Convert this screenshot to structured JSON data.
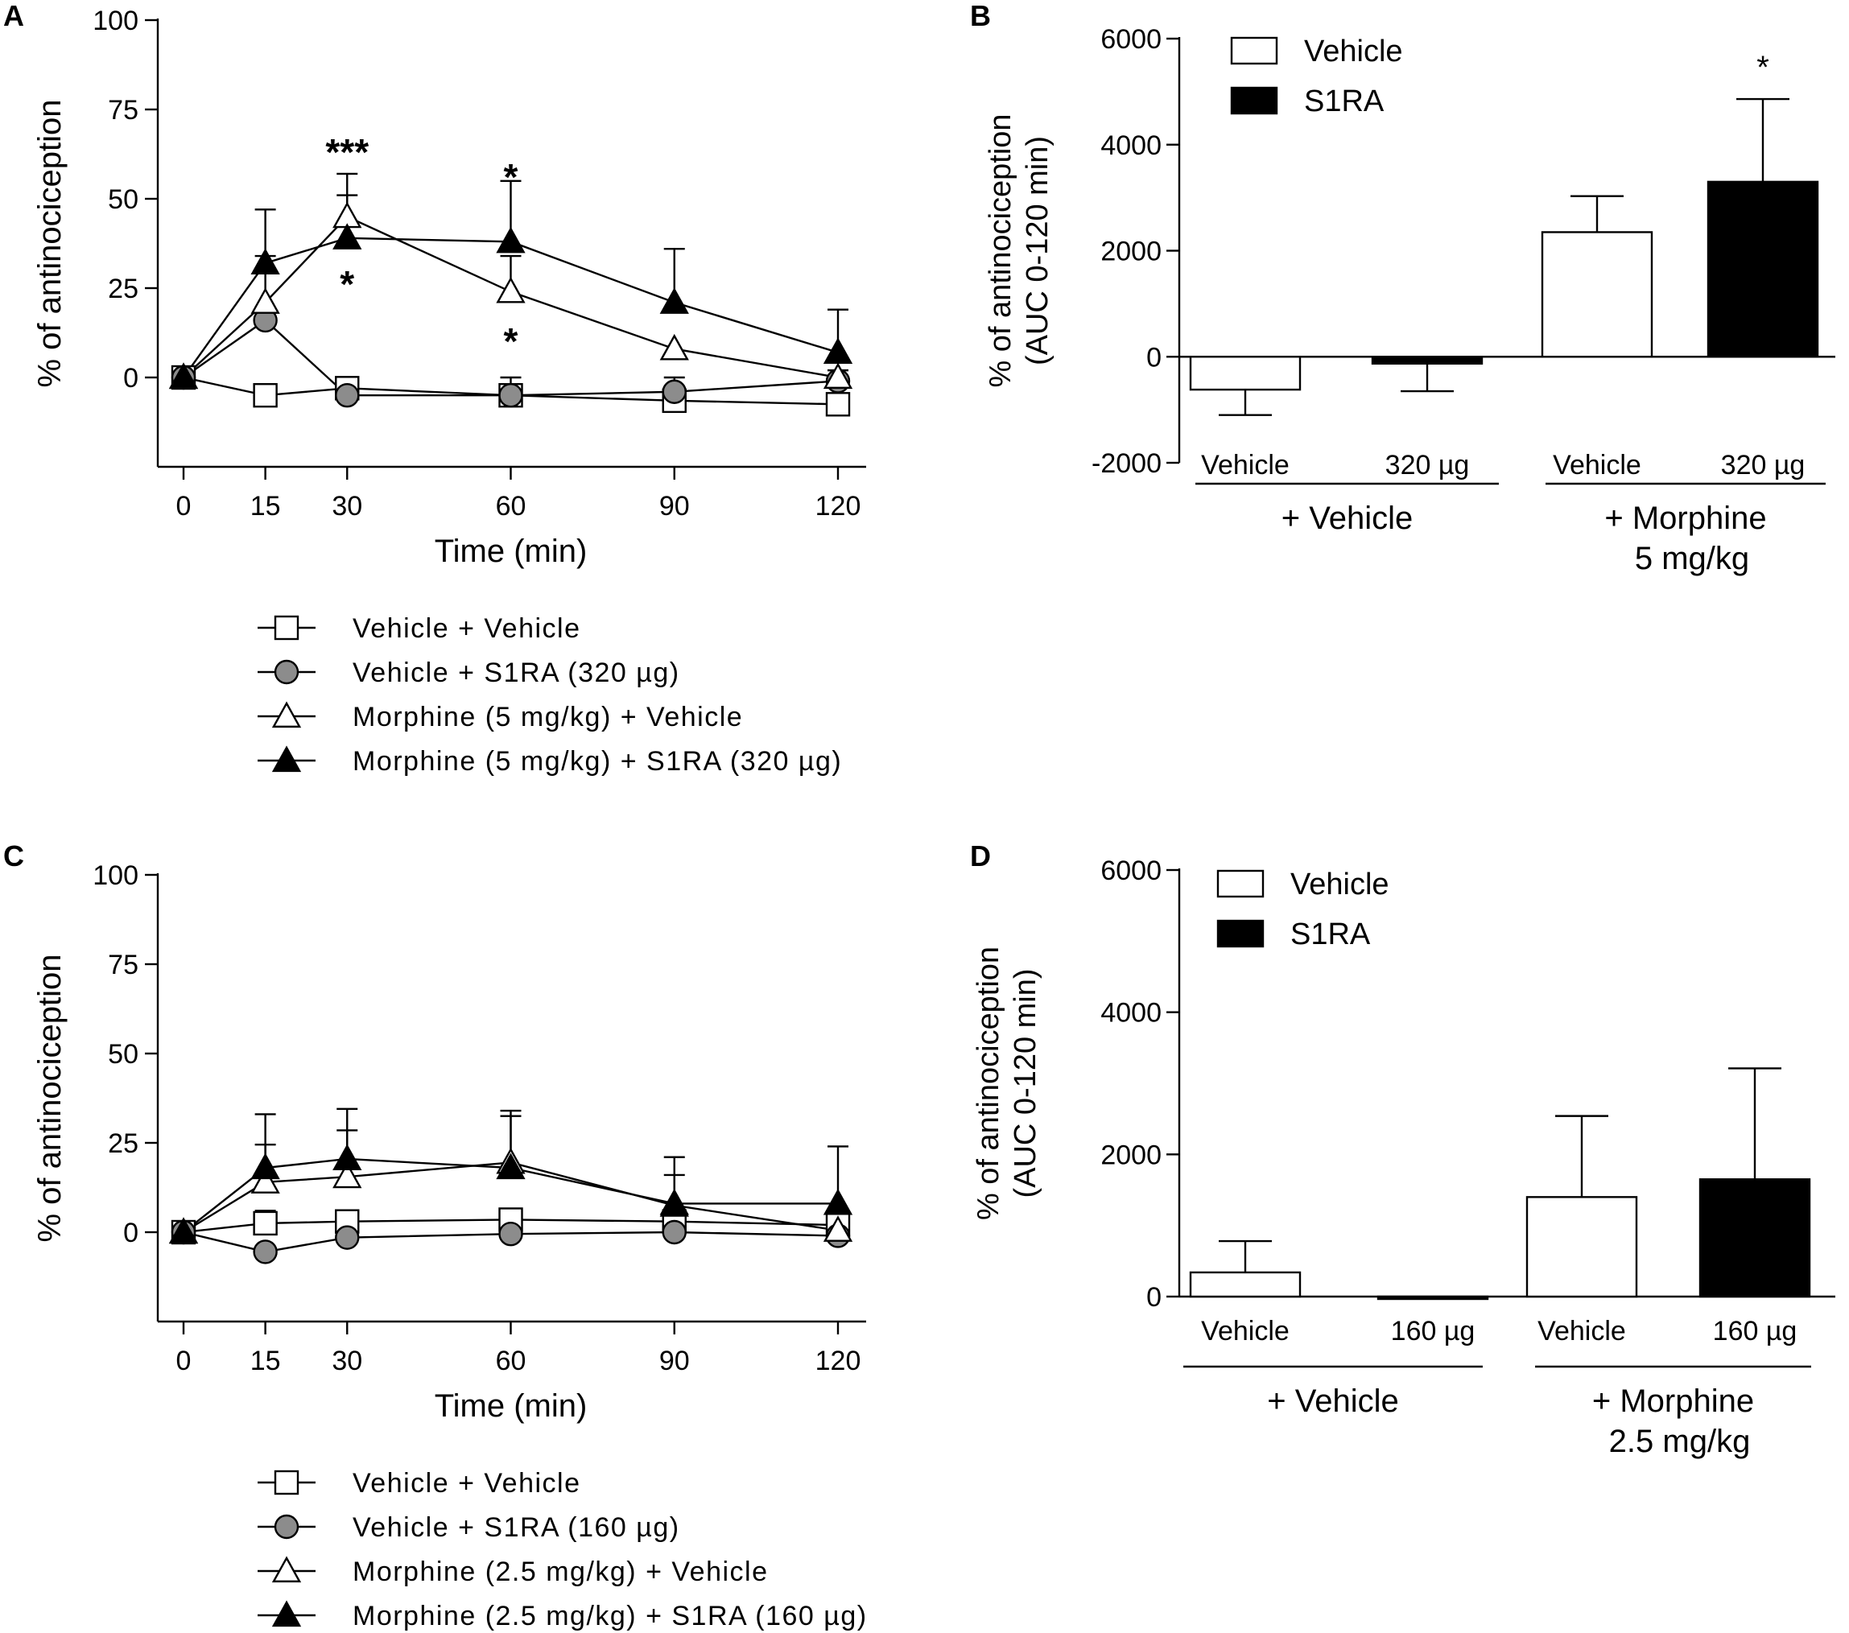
{
  "chart_data": [
    {
      "panel_label": "A",
      "type": "line",
      "xlabel": "Time (min)",
      "ylabel": "% of antinociception",
      "x": [
        0,
        15,
        30,
        60,
        90,
        120
      ],
      "xticks": [
        "0",
        "15",
        "30",
        "60",
        "90",
        "120"
      ],
      "yticks": [
        "0",
        "25",
        "50",
        "75",
        "100"
      ],
      "ylim": [
        -25,
        100
      ],
      "series": [
        {
          "name": "Vehicle + Vehicle",
          "marker": "square-open",
          "values": [
            0,
            -5,
            -3,
            -5,
            -6.5,
            -7.5
          ],
          "errors": [
            3,
            3,
            3,
            3,
            3,
            3
          ]
        },
        {
          "name": "Vehicle + S1RA (320 µg)",
          "marker": "circle-gray",
          "values": [
            0,
            16,
            -5,
            -5,
            -4,
            -1
          ],
          "errors": [
            0,
            0,
            0,
            5,
            4,
            3
          ]
        },
        {
          "name": "Morphine (5 mg/kg) + Vehicle",
          "marker": "triangle-open",
          "values": [
            0,
            21,
            45,
            24,
            8,
            0
          ],
          "errors": [
            0,
            13,
            12,
            10,
            0,
            0
          ]
        },
        {
          "name": "Morphine (5 mg/kg) + S1RA (320 µg)",
          "marker": "triangle-filled",
          "values": [
            0,
            32,
            39,
            38,
            21,
            7
          ],
          "errors": [
            0,
            15,
            12,
            17,
            15,
            12
          ]
        }
      ],
      "annotations": [
        {
          "text": "***",
          "x": 30,
          "y": 64
        },
        {
          "text": "*",
          "x": 30,
          "y": 27
        },
        {
          "text": "*",
          "x": 60,
          "y": 57
        },
        {
          "text": "*",
          "x": 60,
          "y": 11
        }
      ]
    },
    {
      "panel_label": "B",
      "type": "bar",
      "ylabel": [
        "% of antinociception",
        "(AUC 0-120 min)"
      ],
      "yticks": [
        "-2000",
        "0",
        "2000",
        "4000",
        "6000"
      ],
      "ylim": [
        -2000,
        6000
      ],
      "bar_labels": [
        "Vehicle",
        "320 µg",
        "Vehicle",
        "320 µg"
      ],
      "values": [
        -620,
        -130,
        2350,
        3300
      ],
      "errors": [
        480,
        520,
        680,
        1560
      ],
      "fills": [
        "white",
        "black",
        "white",
        "black"
      ],
      "groups": [
        {
          "lines": [
            "+ Vehicle"
          ]
        },
        {
          "lines": [
            "+ Morphine",
            "5 mg/kg"
          ]
        }
      ],
      "legend": [
        "Vehicle",
        "S1RA"
      ],
      "annotations": [
        {
          "text": "*",
          "bar": 3
        }
      ]
    },
    {
      "panel_label": "C",
      "type": "line",
      "xlabel": "Time (min)",
      "ylabel": "% of antinociception",
      "x": [
        0,
        15,
        30,
        60,
        90,
        120
      ],
      "xticks": [
        "0",
        "15",
        "30",
        "60",
        "90",
        "120"
      ],
      "yticks": [
        "0",
        "25",
        "50",
        "75",
        "100"
      ],
      "ylim": [
        -25,
        100
      ],
      "series": [
        {
          "name": "Vehicle + Vehicle",
          "marker": "square-open",
          "values": [
            0,
            2.5,
            3,
            3.5,
            3,
            2
          ],
          "errors": [
            2,
            3.5,
            3,
            2,
            2,
            2
          ]
        },
        {
          "name": "Vehicle + S1RA (160 µg)",
          "marker": "circle-gray",
          "values": [
            0,
            -5.5,
            -1.5,
            -0.5,
            0,
            -1
          ],
          "errors": [
            0,
            0,
            0,
            0,
            0,
            0
          ]
        },
        {
          "name": "Morphine (2.5 mg/kg) + Vehicle",
          "marker": "triangle-open",
          "values": [
            0,
            14,
            15.5,
            19.5,
            7.5,
            0.5
          ],
          "errors": [
            0,
            10.5,
            13,
            13,
            8.5,
            0
          ]
        },
        {
          "name": "Morphine (2.5 mg/kg) + S1RA (160 µg)",
          "marker": "triangle-filled",
          "values": [
            0,
            18,
            20.5,
            18,
            8,
            8
          ],
          "errors": [
            0,
            15,
            14,
            16,
            13,
            16
          ]
        }
      ]
    },
    {
      "panel_label": "D",
      "type": "bar",
      "ylabel": [
        "% of antinociception",
        "(AUC 0-120 min)"
      ],
      "yticks": [
        "0",
        "2000",
        "4000",
        "6000"
      ],
      "ylim": [
        0,
        6000
      ],
      "bar_labels": [
        "Vehicle",
        "160 µg",
        "Vehicle",
        "160 µg"
      ],
      "values": [
        340,
        0,
        1400,
        1650
      ],
      "errors": [
        440,
        0,
        1140,
        1560
      ],
      "fills": [
        "white",
        "black",
        "white",
        "black"
      ],
      "groups": [
        {
          "lines": [
            "+ Vehicle"
          ]
        },
        {
          "lines": [
            "+ Morphine",
            "2.5 mg/kg"
          ]
        }
      ],
      "legend": [
        "Vehicle",
        "S1RA"
      ]
    }
  ]
}
